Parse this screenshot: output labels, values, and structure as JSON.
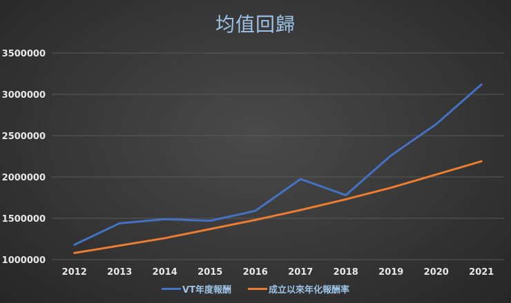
{
  "chart_data": {
    "type": "line",
    "title": "均值回歸",
    "xlabel": "",
    "ylabel": "",
    "categories": [
      "2012",
      "2013",
      "2014",
      "2015",
      "2016",
      "2017",
      "2018",
      "2019",
      "2020",
      "2021"
    ],
    "yticks": [
      "1000000",
      "1500000",
      "2000000",
      "2500000",
      "3000000",
      "3500000"
    ],
    "ylim": [
      1000000,
      3500000
    ],
    "grid": true,
    "legend_position": "bottom",
    "series": [
      {
        "name": "VT年度報酬",
        "color": "#4472c4",
        "values": [
          1180000,
          1440000,
          1490000,
          1470000,
          1590000,
          1975000,
          1780000,
          2260000,
          2640000,
          3120000
        ]
      },
      {
        "name": "成立以來年化報酬率",
        "color": "#ed7d31",
        "values": [
          1080000,
          1170000,
          1260000,
          1370000,
          1480000,
          1600000,
          1730000,
          1870000,
          2030000,
          2190000
        ]
      }
    ]
  }
}
